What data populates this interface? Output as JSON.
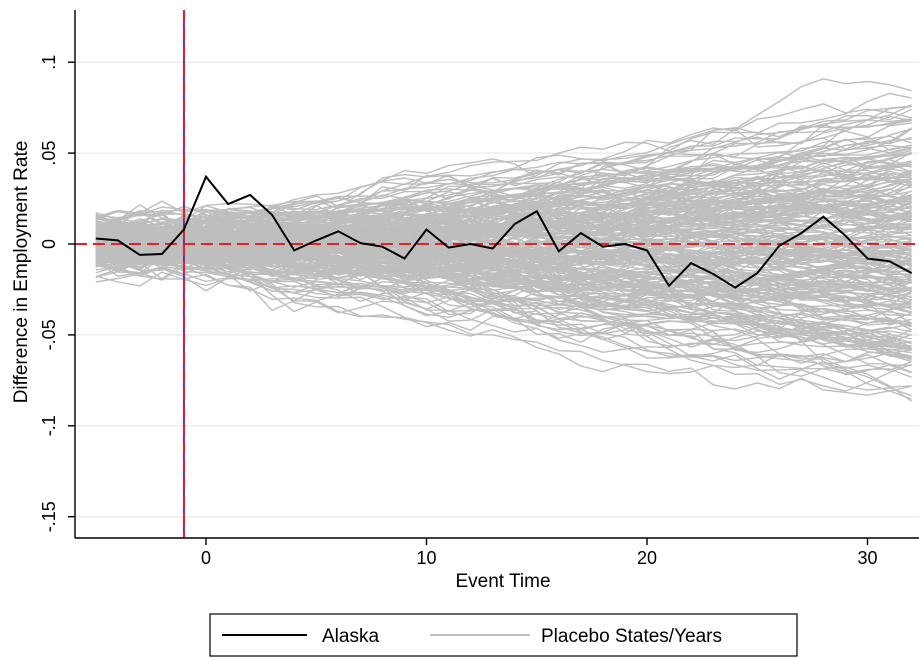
{
  "chart_data": {
    "type": "line",
    "title": "",
    "xlabel": "Event Time",
    "ylabel": "Difference in Employment Rate",
    "xlim": [
      -5,
      32
    ],
    "ylim": [
      -0.16,
      0.13
    ],
    "x_ticks": [
      0,
      10,
      20,
      30
    ],
    "y_ticks": [
      -0.15,
      -0.1,
      -0.05,
      0,
      0.05,
      0.1
    ],
    "y_tick_labels": [
      "-.15",
      "-.1",
      "-.05",
      "0",
      ".05",
      ".1"
    ],
    "grid": true,
    "reference_lines": {
      "horizontal_y": 0,
      "vertical_x": -1,
      "color": "#e8202a",
      "vertical_accent_color": "#7b2d86"
    },
    "legend": {
      "placement": "bottom",
      "entries": [
        "Alaska",
        "Placebo States/Years"
      ]
    },
    "series": [
      {
        "name": "Alaska",
        "color": "#000000",
        "x": [
          -5,
          -4,
          -3,
          -2,
          -1,
          0,
          1,
          2,
          3,
          4,
          5,
          6,
          7,
          8,
          9,
          10,
          11,
          12,
          13,
          14,
          15,
          16,
          17,
          18,
          19,
          20,
          21,
          22,
          23,
          24,
          25,
          26,
          27,
          28,
          29,
          30,
          31,
          32
        ],
        "values": [
          0.003,
          0.002,
          -0.006,
          -0.0055,
          0.008,
          0.037,
          0.022,
          0.027,
          0.016,
          -0.0035,
          0.002,
          0.007,
          0.0005,
          -0.0015,
          -0.008,
          0.008,
          -0.002,
          0.0,
          -0.0025,
          0.011,
          0.018,
          -0.004,
          0.006,
          -0.0015,
          0.0,
          -0.0035,
          -0.023,
          -0.0105,
          -0.0165,
          -0.024,
          -0.016,
          -0.001,
          0.006,
          0.015,
          0.0045,
          -0.008,
          -0.0095,
          -0.016
        ]
      },
      {
        "name": "Placebo States/Years",
        "color": "#bebebe",
        "count": 260,
        "generator_seed": 12345,
        "base_spread": 0.018,
        "envelope": {
          "pre_period_halfwidth": 0.03,
          "post_period_upper": 0.065,
          "late_period_upper": 0.11,
          "lower_min": -0.135
        }
      }
    ]
  }
}
